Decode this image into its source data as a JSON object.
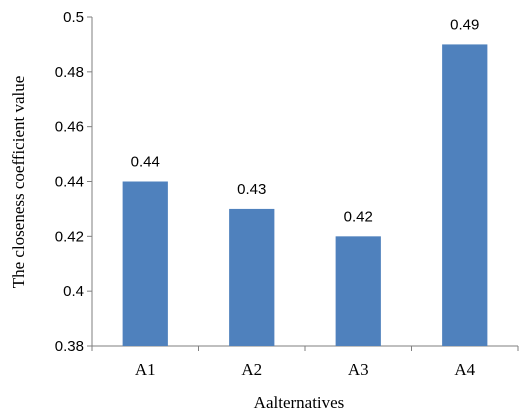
{
  "chart_data": {
    "type": "bar",
    "categories": [
      "A1",
      "A2",
      "A3",
      "A4"
    ],
    "values": [
      0.44,
      0.43,
      0.42,
      0.49
    ],
    "data_labels": [
      "0.44",
      "0.43",
      "0.42",
      "0.49"
    ],
    "title": "",
    "xlabel": "Aalternatives",
    "ylabel": "The closeness coefficient value",
    "ylim": [
      0.38,
      0.5
    ],
    "yticks": [
      0.38,
      0.4,
      0.42,
      0.44,
      0.46,
      0.48,
      0.5
    ],
    "ytick_labels": [
      "0.38",
      "0.4",
      "0.42",
      "0.44",
      "0.46",
      "0.48",
      "0.5"
    ],
    "grid": false,
    "legend": "none",
    "bar_color": "#4F81BD"
  }
}
